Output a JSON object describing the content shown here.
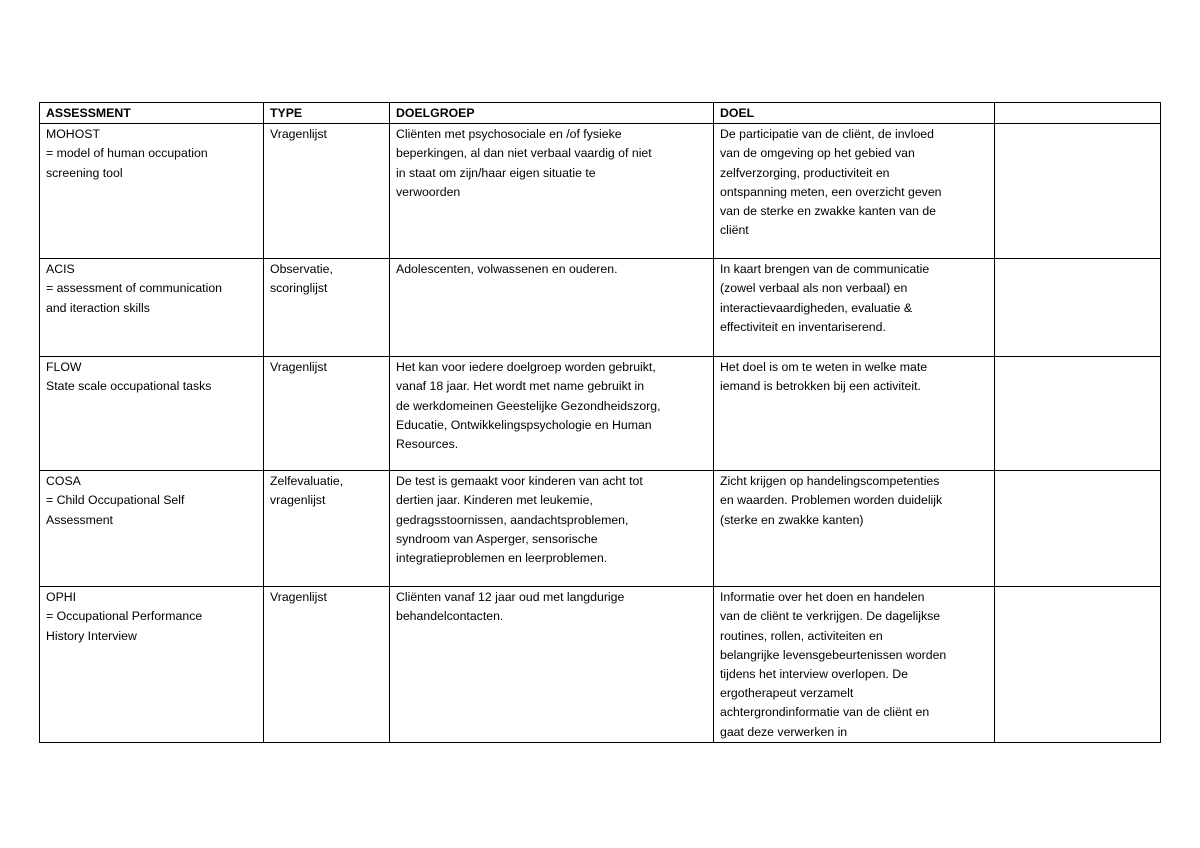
{
  "headers": [
    "ASSESSMENT",
    "TYPE",
    "DOELGROEP",
    "DOEL",
    ""
  ],
  "rows": [
    {
      "assessment": "MOHOST\n=  model of human occupation\nscreening tool",
      "type": "Vragenlijst",
      "doelgroep": "Cliënten met psychosociale en /of fysieke\nbeperkingen, al dan niet verbaal vaardig of niet\nin staat om zijn/haar eigen situatie te\nverwoorden",
      "doel": "De participatie van de cliënt, de invloed\nvan de omgeving op het gebied van\nzelfverzorging, productiviteit en\nontspanning meten, een overzicht geven\nvan de sterke en zwakke kanten van de\ncliënt",
      "extra": ""
    },
    {
      "assessment": "ACIS\n= assessment of communication\nand iteraction skills",
      "type": "Observatie,\nscoringlijst",
      "doelgroep": "Adolescenten, volwassenen en ouderen.",
      "doel": "In kaart brengen van de communicatie\n(zowel verbaal als non verbaal) en\ninteractievaardigheden, evaluatie &\neffectiviteit en inventariserend.",
      "extra": ""
    },
    {
      "assessment": "FLOW\nState scale occupational tasks",
      "type": "Vragenlijst",
      "doelgroep": "Het kan voor iedere doelgroep worden gebruikt,\nvanaf 18 jaar. Het wordt met name gebruikt in\nde werkdomeinen Geestelijke Gezondheidszorg,\nEducatie, Ontwikkelingspsychologie en Human\nResources.",
      "doel": "Het doel is om te weten in welke mate\niemand is betrokken bij een activiteit.",
      "extra": ""
    },
    {
      "assessment": "COSA\n= Child Occupational Self\nAssessment",
      "type": "Zelfevaluatie,\nvragenlijst",
      "doelgroep": "De test is gemaakt voor kinderen van acht tot\ndertien jaar. Kinderen met leukemie,\ngedragsstoornissen, aandachtsproblemen,\nsyndroom van Asperger, sensorische\nintegratieproblemen en leerproblemen.",
      "doel": "Zicht krijgen op handelingscompetenties\nen waarden. Problemen worden duidelijk\n(sterke en zwakke kanten)",
      "extra": ""
    },
    {
      "assessment": "OPHI\n= Occupational Performance\nHistory Interview",
      "type": "Vragenlijst",
      "doelgroep": "Cliënten vanaf 12 jaar oud met langdurige\nbehandelcontacten.",
      "doel": "Informatie over het doen en handelen\nvan de cliënt te verkrijgen. De dagelijkse\nroutines, rollen, activiteiten en\nbelangrijke levensgebeurtenissen worden\ntijdens het interview overlopen. De\nergotherapeut verzamelt\nachtergrondinformatie van de cliënt en\ngaat deze verwerken in",
      "extra": ""
    }
  ]
}
